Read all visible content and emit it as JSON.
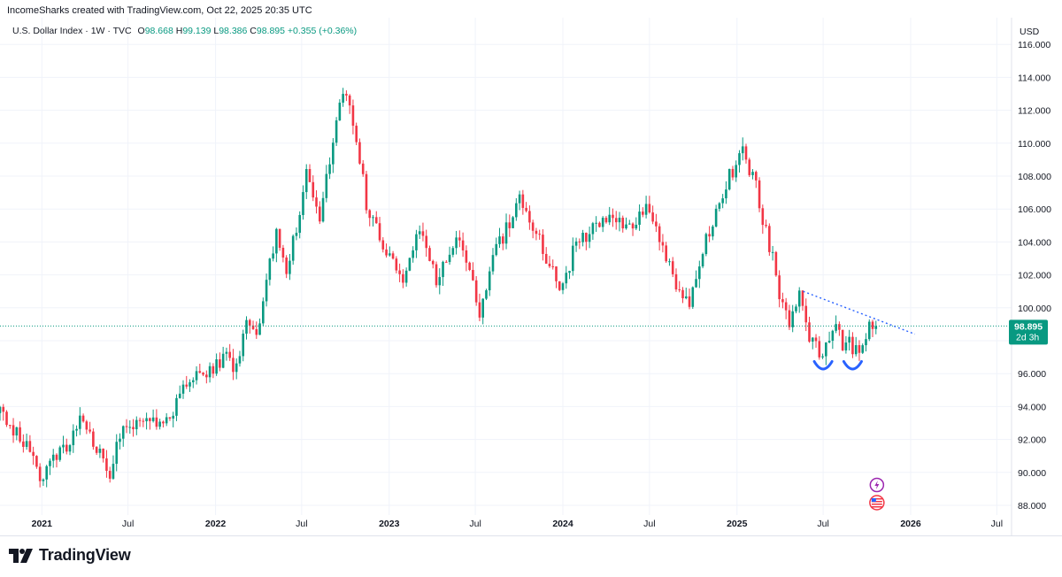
{
  "header": {
    "credit": "IncomeSharks created with TradingView.com, Oct 22, 2025 20:35 UTC"
  },
  "legend": {
    "symbol": "U.S. Dollar Index · 1W · TVC",
    "o_label": "O",
    "o_value": "98.668",
    "h_label": "H",
    "h_value": "99.139",
    "l_label": "L",
    "l_value": "98.386",
    "c_label": "C",
    "c_value": "98.895",
    "change": "+0.355 (+0.36%)"
  },
  "price_axis": {
    "currency": "USD",
    "last_price": "98.895",
    "countdown": "2d 3h"
  },
  "brand": {
    "name": "TradingView"
  },
  "colors": {
    "up": "#089981",
    "down": "#f23645",
    "trendline": "#2962ff",
    "pattern": "#2962ff",
    "grid": "#f0f3fa"
  },
  "icons": [
    "lightning-event-icon",
    "us-flag-event-icon"
  ],
  "chart_data": {
    "type": "candlestick",
    "timeframe": "1W",
    "x_ticks": [
      "2021",
      "Jul",
      "2022",
      "Jul",
      "2023",
      "Jul",
      "2024",
      "Jul",
      "2025",
      "Jul",
      "2026",
      "Jul"
    ],
    "y_ticks": [
      "88.000",
      "90.000",
      "92.000",
      "94.000",
      "96.000",
      "98.000",
      "100.000",
      "102.000",
      "104.000",
      "106.000",
      "108.000",
      "110.000",
      "112.000",
      "114.000",
      "116.000"
    ],
    "ylim": [
      87,
      117
    ],
    "xlim": [
      "2020-10-05",
      "2026-08-01"
    ],
    "last_close": 98.895,
    "anchors": [
      [
        "2020-10-05",
        93.6
      ],
      [
        "2020-11-16",
        92.2
      ],
      [
        "2020-12-28",
        89.8
      ],
      [
        "2021-01-25",
        90.6
      ],
      [
        "2021-03-29",
        93.2
      ],
      [
        "2021-05-24",
        89.7
      ],
      [
        "2021-06-14",
        92.2
      ],
      [
        "2021-08-16",
        93.5
      ],
      [
        "2021-09-13",
        92.6
      ],
      [
        "2021-11-22",
        96.5
      ],
      [
        "2021-12-27",
        96.0
      ],
      [
        "2022-01-24",
        97.3
      ],
      [
        "2022-02-07",
        95.6
      ],
      [
        "2022-03-07",
        98.9
      ],
      [
        "2022-03-28",
        98.6
      ],
      [
        "2022-05-09",
        104.4
      ],
      [
        "2022-05-30",
        101.8
      ],
      [
        "2022-07-11",
        107.9
      ],
      [
        "2022-08-08",
        105.6
      ],
      [
        "2022-09-26",
        113.5
      ],
      [
        "2022-10-24",
        110.4
      ],
      [
        "2022-11-14",
        106.3
      ],
      [
        "2022-12-12",
        104.3
      ],
      [
        "2023-01-30",
        101.9
      ],
      [
        "2023-03-06",
        105.1
      ],
      [
        "2023-04-10",
        101.5
      ],
      [
        "2023-05-29",
        104.2
      ],
      [
        "2023-07-10",
        99.8
      ],
      [
        "2023-08-14",
        103.4
      ],
      [
        "2023-10-02",
        106.6
      ],
      [
        "2023-11-20",
        103.5
      ],
      [
        "2023-12-25",
        101.2
      ],
      [
        "2024-01-29",
        103.8
      ],
      [
        "2024-04-08",
        105.8
      ],
      [
        "2024-05-20",
        104.6
      ],
      [
        "2024-06-24",
        105.8
      ],
      [
        "2024-07-29",
        103.5
      ],
      [
        "2024-09-02",
        101.0
      ],
      [
        "2024-09-23",
        100.6
      ],
      [
        "2024-10-28",
        104.1
      ],
      [
        "2024-11-25",
        106.8
      ],
      [
        "2025-01-13",
        109.6
      ],
      [
        "2025-02-10",
        107.2
      ],
      [
        "2025-03-10",
        103.8
      ],
      [
        "2025-04-07",
        100.0
      ],
      [
        "2025-04-21",
        99.2
      ],
      [
        "2025-05-12",
        101.0
      ],
      [
        "2025-05-26",
        98.8
      ],
      [
        "2025-06-30",
        96.9
      ],
      [
        "2025-07-28",
        99.3
      ],
      [
        "2025-08-11",
        97.9
      ],
      [
        "2025-09-15",
        97.5
      ],
      [
        "2025-10-06",
        98.8
      ],
      [
        "2025-10-20",
        98.9
      ]
    ],
    "trendline": {
      "style": "dotted",
      "from": [
        "2025-05-20",
        101.0
      ],
      "to": [
        "2026-01-10",
        98.4
      ]
    },
    "annotations": [
      {
        "type": "arc",
        "date": "2025-07-01",
        "value": 96.9
      },
      {
        "type": "arc",
        "date": "2025-09-01",
        "value": 96.9
      }
    ]
  }
}
